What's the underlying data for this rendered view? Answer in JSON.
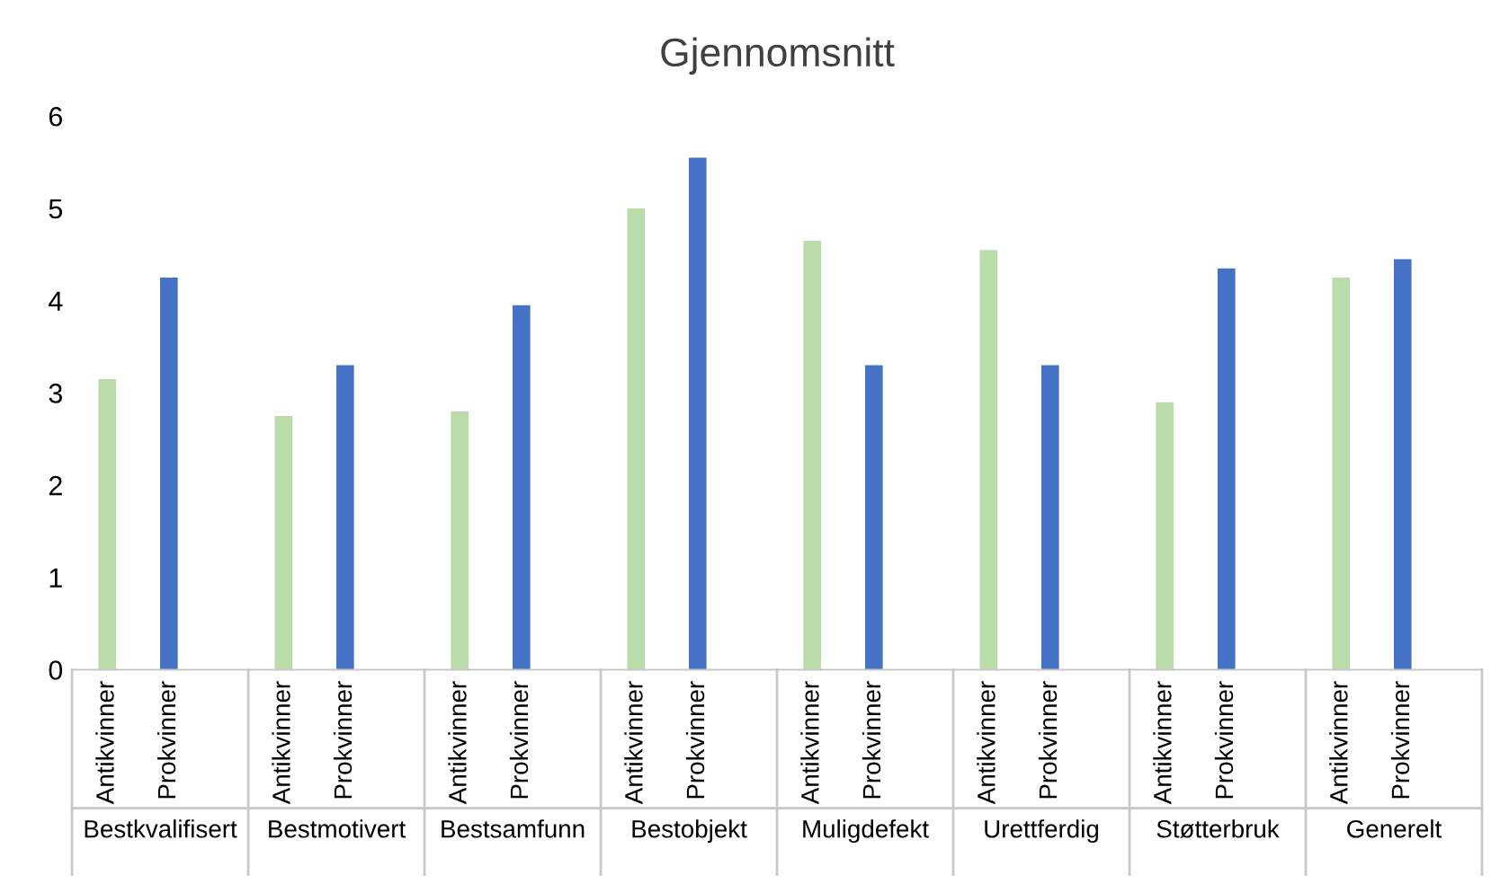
{
  "chart_data": {
    "type": "bar",
    "title": "Gjennomsnitt",
    "categories": [
      "Bestkvalifisert",
      "Bestmotivert",
      "Bestsamfunn",
      "Bestobjekt",
      "Muligdefekt",
      "Urettferdig",
      "Støtterbruk",
      "Generelt"
    ],
    "series": [
      {
        "name": "Antikvinner",
        "color": "#b9dcaa",
        "values": [
          3.15,
          2.75,
          2.8,
          5.0,
          4.65,
          4.55,
          2.9,
          4.25
        ]
      },
      {
        "name": "Prokvinner",
        "color": "#4472c4",
        "values": [
          4.25,
          3.3,
          3.95,
          5.55,
          3.3,
          3.3,
          4.35,
          4.45
        ]
      }
    ],
    "ylim": [
      0,
      6
    ],
    "yticks": [
      0,
      1,
      2,
      3,
      4,
      5,
      6
    ],
    "grid": false,
    "legend": false
  }
}
